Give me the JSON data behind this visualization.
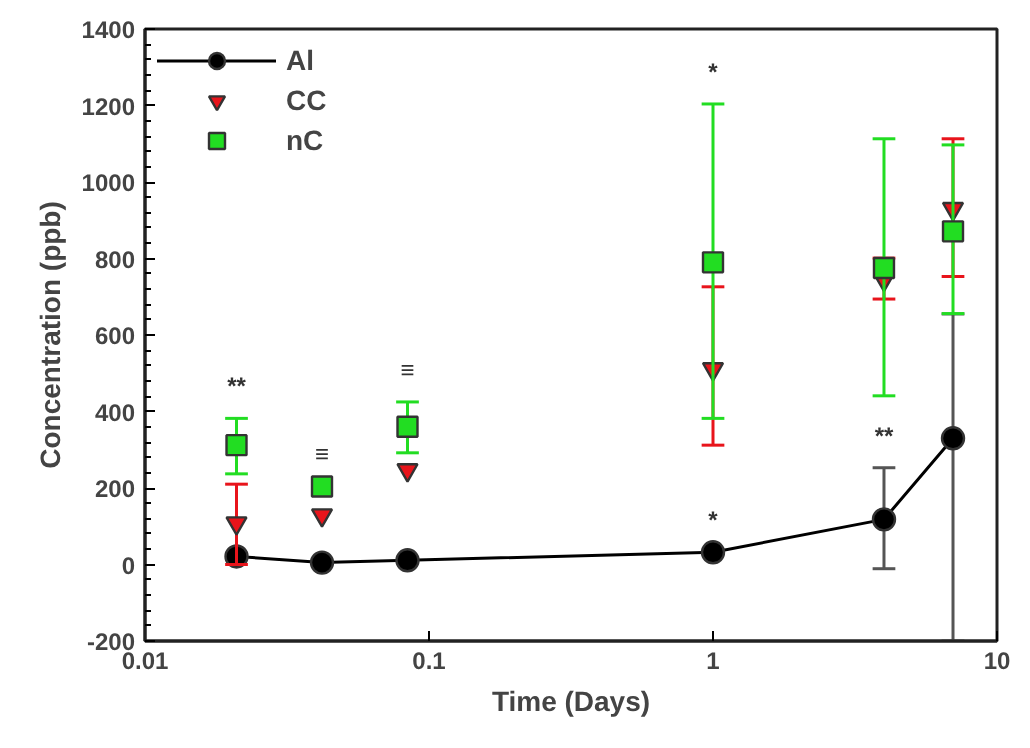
{
  "chart_data": {
    "type": "line",
    "xlabel": "Time (Days)",
    "ylabel": "Concentration (ppb)",
    "x": [
      0.021,
      0.042,
      0.084,
      1,
      4,
      7
    ],
    "series": [
      {
        "name": "Al",
        "marker": "circle",
        "color": "#000000",
        "values": [
          21,
          5,
          11,
          32,
          118,
          330
        ],
        "errors": [
          null,
          null,
          null,
          null,
          [
            -11,
            253
          ],
          [
            -200,
            655
          ]
        ]
      },
      {
        "name": "CC",
        "type": "scatter",
        "marker": "triangle",
        "color": "#e8141b",
        "values": [
          108,
          129,
          247,
          511,
          745,
          930
        ],
        "errors": [
          [
            0,
            210
          ],
          null,
          null,
          [
            312,
            726
          ],
          [
            694,
            801
          ],
          [
            753,
            1113
          ]
        ]
      },
      {
        "name": "nC",
        "type": "scatter",
        "marker": "square",
        "color": "#22dd22",
        "values": [
          312,
          204,
          360,
          790,
          775,
          871
        ],
        "errors": [
          [
            237,
            382
          ],
          null,
          [
            292,
            425
          ],
          [
            382,
            1204
          ],
          [
            441,
            1113
          ],
          [
            656,
            1097
          ]
        ]
      }
    ],
    "annotations": [
      {
        "text": "**",
        "x": 0.021,
        "y": 382
      },
      {
        "text": "≡",
        "x": 0.042,
        "y": 204
      },
      {
        "text": "≡",
        "x": 0.084,
        "y": 425
      },
      {
        "text": "*",
        "x": 1,
        "y": 1204
      },
      {
        "text": "*",
        "x": 1,
        "y": 32
      },
      {
        "text": "**",
        "x": 4,
        "y": 253
      }
    ],
    "log": "x",
    "xlim": [
      0.01,
      10
    ],
    "xticks": [
      0.01,
      0.1,
      1,
      10
    ],
    "ylim": [
      -200,
      1400
    ],
    "yticks": [
      -200,
      0,
      200,
      400,
      600,
      800,
      1000,
      1200,
      1400
    ],
    "grid": false,
    "legend": "top left"
  }
}
